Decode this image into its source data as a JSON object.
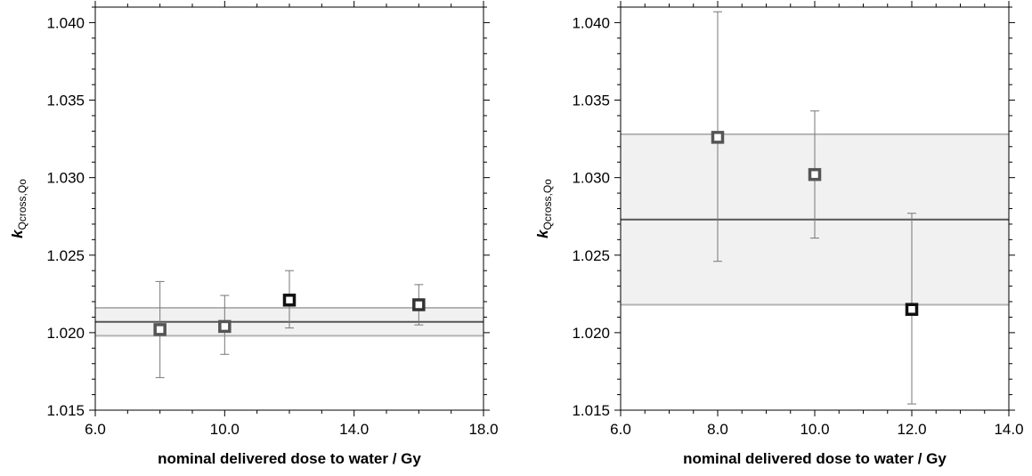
{
  "chart_data": [
    {
      "type": "scatter",
      "xlabel": "nominal delivered dose to water / Gy",
      "ylabel_main": "k",
      "ylabel_sub": "Qcross,Qo",
      "xlim": [
        6.0,
        18.0
      ],
      "ylim": [
        1.015,
        1.041
      ],
      "x_ticks": [
        6.0,
        10.0,
        14.0,
        18.0
      ],
      "x_tick_labels": [
        "6.0",
        "10.0",
        "14.0",
        "18.0"
      ],
      "y_ticks": [
        1.015,
        1.02,
        1.025,
        1.03,
        1.035,
        1.04
      ],
      "y_tick_labels": [
        "1.015",
        "1.020",
        "1.025",
        "1.030",
        "1.035",
        "1.040"
      ],
      "grid": false,
      "mean": 1.0207,
      "band": [
        1.0198,
        1.0216
      ],
      "points": [
        {
          "x": 8.0,
          "y": 1.0202,
          "err_low": 1.0171,
          "err_high": 1.0233,
          "color": "#555555"
        },
        {
          "x": 10.0,
          "y": 1.0204,
          "err_low": 1.0186,
          "err_high": 1.0224,
          "color": "#555555"
        },
        {
          "x": 12.0,
          "y": 1.0221,
          "err_low": 1.0203,
          "err_high": 1.024,
          "color": "#111111"
        },
        {
          "x": 16.0,
          "y": 1.0218,
          "err_low": 1.0205,
          "err_high": 1.0231,
          "color": "#333333"
        }
      ]
    },
    {
      "type": "scatter",
      "xlabel": "nominal delivered dose to water / Gy",
      "ylabel_main": "k",
      "ylabel_sub": "Qcross,Qo",
      "xlim": [
        6.0,
        14.0
      ],
      "ylim": [
        1.015,
        1.041
      ],
      "x_ticks": [
        6.0,
        8.0,
        10.0,
        12.0,
        14.0
      ],
      "x_tick_labels": [
        "6.0",
        "8.0",
        "10.0",
        "12.0",
        "14.0"
      ],
      "y_ticks": [
        1.015,
        1.02,
        1.025,
        1.03,
        1.035,
        1.04
      ],
      "y_tick_labels": [
        "1.015",
        "1.020",
        "1.025",
        "1.030",
        "1.035",
        "1.040"
      ],
      "grid": false,
      "mean": 1.0273,
      "band": [
        1.0218,
        1.0328
      ],
      "points": [
        {
          "x": 8.0,
          "y": 1.0326,
          "err_low": 1.0246,
          "err_high": 1.0407,
          "color": "#555555"
        },
        {
          "x": 10.0,
          "y": 1.0302,
          "err_low": 1.0261,
          "err_high": 1.0343,
          "color": "#555555"
        },
        {
          "x": 12.0,
          "y": 1.0215,
          "err_low": 1.0154,
          "err_high": 1.0277,
          "color": "#111111"
        }
      ]
    }
  ],
  "style": {
    "band_fill": "#f1f1f1",
    "band_edge": "#b3b3b3",
    "mean_line": "#555555",
    "error_bar": "#777777",
    "axis": "#000000"
  }
}
